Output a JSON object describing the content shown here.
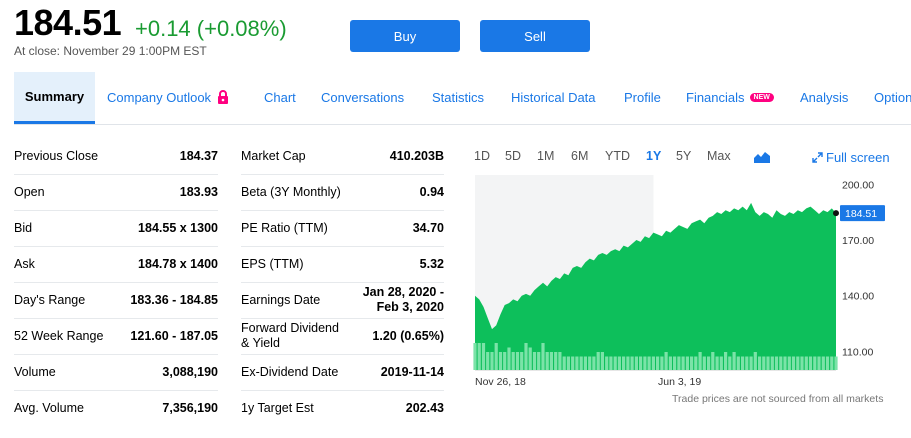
{
  "quote": {
    "price": "184.51",
    "change": "+0.14 (+0.08%)",
    "close_note": "At close: November 29 1:00PM EST"
  },
  "actions": {
    "buy": "Buy",
    "sell": "Sell"
  },
  "tabs": [
    {
      "label": "Summary"
    },
    {
      "label": "Company Outlook"
    },
    {
      "label": "Chart"
    },
    {
      "label": "Conversations"
    },
    {
      "label": "Statistics"
    },
    {
      "label": "Historical Data"
    },
    {
      "label": "Profile"
    },
    {
      "label": "Financials",
      "badge": "NEW"
    },
    {
      "label": "Analysis"
    },
    {
      "label": "Options"
    }
  ],
  "left_table": [
    {
      "label": "Previous Close",
      "value": "184.37"
    },
    {
      "label": "Open",
      "value": "183.93"
    },
    {
      "label": "Bid",
      "value": "184.55 x 1300"
    },
    {
      "label": "Ask",
      "value": "184.78 x 1400"
    },
    {
      "label": "Day's Range",
      "value": "183.36 - 184.85"
    },
    {
      "label": "52 Week Range",
      "value": "121.60 - 187.05"
    },
    {
      "label": "Volume",
      "value": "3,088,190"
    },
    {
      "label": "Avg. Volume",
      "value": "7,356,190"
    }
  ],
  "right_table": [
    {
      "label": "Market Cap",
      "value": "410.203B"
    },
    {
      "label": "Beta (3Y Monthly)",
      "value": "0.94"
    },
    {
      "label": "PE Ratio (TTM)",
      "value": "34.70"
    },
    {
      "label": "EPS (TTM)",
      "value": "5.32"
    },
    {
      "label": "Earnings Date",
      "value_line1": "Jan 28, 2020 -",
      "value_line2": "Feb 3, 2020"
    },
    {
      "label_line1": "Forward Dividend",
      "label_line2": "& Yield",
      "value": "1.20 (0.65%)"
    },
    {
      "label": "Ex-Dividend Date",
      "value": "2019-11-14"
    },
    {
      "label": "1y Target Est",
      "value": "202.43"
    }
  ],
  "ranges": [
    "1D",
    "5D",
    "1M",
    "6M",
    "YTD",
    "1Y",
    "5Y",
    "Max"
  ],
  "selected_range": "1Y",
  "chart_type_icon": "mountain-chart-icon",
  "full_screen": "Full screen",
  "footnote": "Trade prices are not sourced from all markets",
  "colors": {
    "accent": "#1a78e6",
    "positive": "#1a9b32",
    "area": "#0dbf5b",
    "volume": "#7be3a8"
  },
  "chart_data": {
    "type": "area",
    "ylim": [
      100,
      205
    ],
    "yticks": [
      200.0,
      170.0,
      140.0,
      110.0
    ],
    "ytick_labels": [
      "200.00",
      "170.00",
      "140.00",
      "110.00"
    ],
    "x_labels": [
      "Nov 26, 18",
      "Jun 3, 19"
    ],
    "current_price": 184.51,
    "current_label": "184.51",
    "values": [
      140,
      138,
      134,
      128,
      122,
      124,
      130,
      135,
      136,
      138,
      137,
      140,
      141,
      140,
      143,
      145,
      147,
      145,
      148,
      150,
      149,
      152,
      151,
      155,
      156,
      155,
      158,
      160,
      159,
      162,
      163,
      162,
      164,
      165,
      164,
      167,
      166,
      168,
      170,
      169,
      172,
      171,
      174,
      173,
      172,
      175,
      174,
      176,
      178,
      177,
      176,
      179,
      180,
      181,
      179,
      182,
      183,
      185,
      184,
      186,
      185,
      187,
      186,
      188,
      186,
      190,
      185,
      183,
      185,
      184,
      182,
      186,
      184,
      183,
      185,
      184,
      186,
      185,
      187,
      188,
      186,
      184,
      186,
      185,
      187,
      184.51
    ],
    "volumes": [
      6,
      6,
      6,
      4,
      4,
      6,
      4,
      4,
      5,
      4,
      4,
      4,
      6,
      5,
      4,
      4,
      6,
      4,
      4,
      4,
      4,
      3,
      3,
      3,
      3,
      3,
      3,
      3,
      3,
      4,
      4,
      3,
      3,
      3,
      3,
      3,
      3,
      3,
      3,
      3,
      3,
      3,
      3,
      3,
      3,
      4,
      3,
      3,
      3,
      3,
      3,
      3,
      3,
      4,
      3,
      3,
      4,
      3,
      3,
      4,
      3,
      4,
      3,
      3,
      3,
      3,
      4,
      3,
      3,
      3,
      3,
      3,
      3,
      3,
      3,
      3,
      3,
      3,
      3,
      3,
      3,
      3,
      3,
      3,
      3,
      3
    ]
  }
}
